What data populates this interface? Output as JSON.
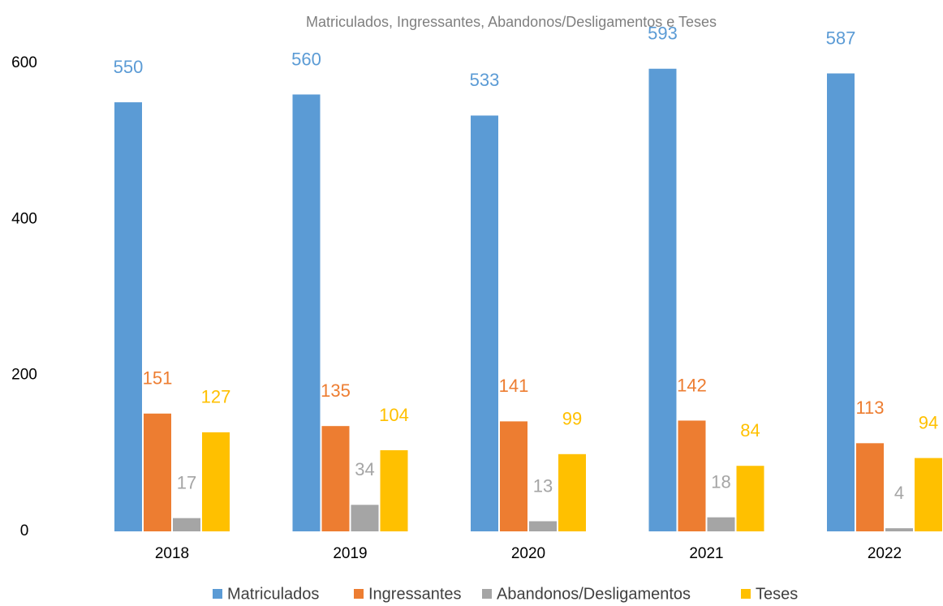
{
  "chart_data": {
    "type": "bar",
    "title": "Matriculados, Ingressantes, Abandonos/Desligamentos e Teses",
    "categories": [
      "2018",
      "2019",
      "2020",
      "2021",
      "2022"
    ],
    "series": [
      {
        "name": "Matriculados",
        "color": "#5b9bd5",
        "values": [
          550,
          560,
          533,
          593,
          587
        ]
      },
      {
        "name": "Ingressantes",
        "color": "#ed7d31",
        "values": [
          151,
          135,
          141,
          142,
          113
        ]
      },
      {
        "name": "Abandonos/Desligamentos",
        "color": "#a5a5a5",
        "values": [
          17,
          34,
          13,
          18,
          4
        ]
      },
      {
        "name": "Teses",
        "color": "#ffc000",
        "values": [
          127,
          104,
          99,
          84,
          94
        ]
      }
    ],
    "ylim": [
      0,
      600
    ],
    "yticks": [
      0,
      200,
      400,
      600
    ],
    "grid": false,
    "legend": "bottom"
  }
}
